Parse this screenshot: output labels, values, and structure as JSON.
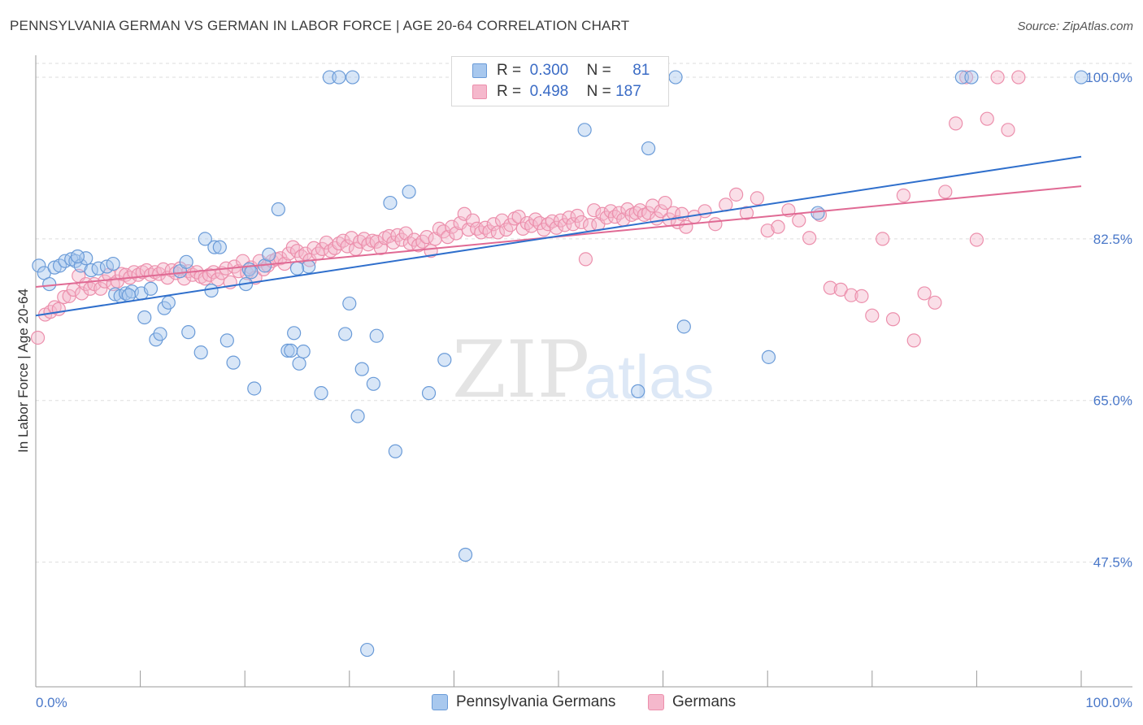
{
  "title": "PENNSYLVANIA GERMAN VS GERMAN IN LABOR FORCE | AGE 20-64 CORRELATION CHART",
  "source": "Source: ZipAtlas.com",
  "watermark": {
    "zip": "ZIP",
    "atlas": "atlas"
  },
  "legend": {
    "r_label": "R =",
    "n_label": "N =",
    "rows": [
      {
        "r": "0.300",
        "n": "81"
      },
      {
        "r": "0.498",
        "n": "187"
      }
    ]
  },
  "colors": {
    "blue_fill": "#a8c8ee",
    "blue_stroke": "#6a9bd8",
    "blue_line": "#2f6fcc",
    "pink_fill": "#f5b8cc",
    "pink_stroke": "#ec8fac",
    "pink_line": "#e06a94",
    "tick_text": "#4a78c9",
    "grid": "#dddddd"
  },
  "chart_data": {
    "type": "scatter",
    "title": "PENNSYLVANIA GERMAN VS GERMAN IN LABOR FORCE | AGE 20-64 CORRELATION CHART",
    "xlabel": "",
    "ylabel": "In Labor Force | Age 20-64",
    "xlim": [
      0,
      100
    ],
    "ylim": [
      34,
      101.5
    ],
    "x_ticks_labels": [
      "0.0%",
      "100.0%"
    ],
    "y_ticks": [
      47.5,
      65.0,
      82.5,
      100.0
    ],
    "y_tick_labels": [
      "47.5%",
      "65.0%",
      "82.5%",
      "100.0%"
    ],
    "grid": true,
    "legend_position": "top-center",
    "series": [
      {
        "name": "Pennsylvania Germans",
        "color": "#a8c8ee",
        "R": 0.3,
        "N": 81,
        "trend": [
          [
            0,
            74.2
          ],
          [
            100,
            91.4
          ]
        ],
        "points": [
          [
            0.3,
            79.6
          ],
          [
            0.8,
            78.8
          ],
          [
            1.3,
            77.6
          ],
          [
            1.8,
            79.4
          ],
          [
            2.3,
            79.6
          ],
          [
            2.8,
            80.1
          ],
          [
            3.4,
            80.3
          ],
          [
            3.8,
            80.1
          ],
          [
            4.3,
            79.6
          ],
          [
            4.8,
            80.4
          ],
          [
            5.3,
            79.1
          ],
          [
            6.0,
            79.3
          ],
          [
            6.8,
            79.5
          ],
          [
            7.4,
            79.8
          ],
          [
            7.6,
            76.5
          ],
          [
            8.1,
            76.3
          ],
          [
            8.6,
            76.6
          ],
          [
            9.2,
            76.8
          ],
          [
            10.1,
            76.6
          ],
          [
            10.4,
            74.0
          ],
          [
            11.0,
            77.1
          ],
          [
            11.5,
            71.6
          ],
          [
            11.9,
            72.2
          ],
          [
            12.3,
            75.0
          ],
          [
            12.7,
            75.6
          ],
          [
            13.8,
            79.0
          ],
          [
            14.4,
            80.0
          ],
          [
            14.6,
            72.4
          ],
          [
            15.8,
            70.2
          ],
          [
            16.2,
            82.5
          ],
          [
            16.8,
            76.9
          ],
          [
            17.1,
            81.6
          ],
          [
            17.6,
            81.6
          ],
          [
            18.3,
            71.5
          ],
          [
            18.9,
            69.1
          ],
          [
            20.1,
            77.6
          ],
          [
            20.4,
            79.2
          ],
          [
            20.6,
            78.9
          ],
          [
            20.9,
            66.3
          ],
          [
            21.9,
            79.6
          ],
          [
            22.3,
            80.8
          ],
          [
            23.2,
            85.7
          ],
          [
            24.1,
            70.4
          ],
          [
            24.4,
            70.4
          ],
          [
            24.7,
            72.3
          ],
          [
            25.2,
            69.0
          ],
          [
            25.6,
            70.3
          ],
          [
            26.1,
            79.5
          ],
          [
            27.3,
            65.8
          ],
          [
            28.1,
            100.0
          ],
          [
            29.0,
            100.0
          ],
          [
            29.6,
            72.2
          ],
          [
            30.0,
            75.5
          ],
          [
            30.3,
            100.0
          ],
          [
            30.8,
            63.3
          ],
          [
            31.2,
            68.4
          ],
          [
            31.7,
            38.0
          ],
          [
            32.3,
            66.8
          ],
          [
            32.6,
            72.0
          ],
          [
            33.9,
            86.4
          ],
          [
            34.4,
            59.5
          ],
          [
            35.7,
            87.6
          ],
          [
            37.6,
            65.8
          ],
          [
            39.1,
            69.4
          ],
          [
            41.1,
            48.3
          ],
          [
            41.6,
            100.0
          ],
          [
            43.2,
            100.0
          ],
          [
            50.1,
            100.0
          ],
          [
            52.5,
            94.3
          ],
          [
            57.6,
            66.0
          ],
          [
            58.6,
            92.3
          ],
          [
            61.2,
            100.0
          ],
          [
            62.0,
            73.0
          ],
          [
            70.1,
            69.7
          ],
          [
            74.8,
            85.3
          ],
          [
            88.6,
            100.0
          ],
          [
            89.5,
            100.0
          ],
          [
            100.0,
            100.0
          ],
          [
            4.0,
            80.6
          ],
          [
            8.9,
            76.4
          ],
          [
            25.0,
            79.3
          ]
        ]
      },
      {
        "name": "Germans",
        "color": "#f5b8cc",
        "R": 0.498,
        "N": 187,
        "trend": [
          [
            0,
            77.3
          ],
          [
            100,
            88.2
          ]
        ],
        "points": [
          [
            0.2,
            71.8
          ],
          [
            0.9,
            74.3
          ],
          [
            1.4,
            74.6
          ],
          [
            1.8,
            75.1
          ],
          [
            2.2,
            74.9
          ],
          [
            2.7,
            76.2
          ],
          [
            3.2,
            76.3
          ],
          [
            3.6,
            77.0
          ],
          [
            4.1,
            78.5
          ],
          [
            4.4,
            76.6
          ],
          [
            4.8,
            77.6
          ],
          [
            5.2,
            77.1
          ],
          [
            5.6,
            77.6
          ],
          [
            6.2,
            77.1
          ],
          [
            6.6,
            77.9
          ],
          [
            7.0,
            78.6
          ],
          [
            7.4,
            77.6
          ],
          [
            7.8,
            77.9
          ],
          [
            8.2,
            78.7
          ],
          [
            8.6,
            78.6
          ],
          [
            9.0,
            78.3
          ],
          [
            9.4,
            78.9
          ],
          [
            9.8,
            78.6
          ],
          [
            10.2,
            78.9
          ],
          [
            10.6,
            79.1
          ],
          [
            11.0,
            78.6
          ],
          [
            11.4,
            78.9
          ],
          [
            11.8,
            78.7
          ],
          [
            12.2,
            79.2
          ],
          [
            12.6,
            78.3
          ],
          [
            13.0,
            79.1
          ],
          [
            13.4,
            78.8
          ],
          [
            13.8,
            79.3
          ],
          [
            14.2,
            78.2
          ],
          [
            14.6,
            79.0
          ],
          [
            15.0,
            78.6
          ],
          [
            15.4,
            78.9
          ],
          [
            15.8,
            78.4
          ],
          [
            16.2,
            78.2
          ],
          [
            16.6,
            78.6
          ],
          [
            17.0,
            78.9
          ],
          [
            17.4,
            78.1
          ],
          [
            17.8,
            78.8
          ],
          [
            18.2,
            79.3
          ],
          [
            18.6,
            77.8
          ],
          [
            19.0,
            79.5
          ],
          [
            19.4,
            79.0
          ],
          [
            19.8,
            80.1
          ],
          [
            20.2,
            78.8
          ],
          [
            20.6,
            79.4
          ],
          [
            21.0,
            78.3
          ],
          [
            21.4,
            80.1
          ],
          [
            21.8,
            79.2
          ],
          [
            22.2,
            79.6
          ],
          [
            22.6,
            80.1
          ],
          [
            23.0,
            80.3
          ],
          [
            23.4,
            80.4
          ],
          [
            23.8,
            79.8
          ],
          [
            24.2,
            80.9
          ],
          [
            24.6,
            81.6
          ],
          [
            25.0,
            81.2
          ],
          [
            25.4,
            80.6
          ],
          [
            25.8,
            80.9
          ],
          [
            26.2,
            80.2
          ],
          [
            26.6,
            81.5
          ],
          [
            27.0,
            80.9
          ],
          [
            27.4,
            81.4
          ],
          [
            27.8,
            82.1
          ],
          [
            28.2,
            81.2
          ],
          [
            28.6,
            81.5
          ],
          [
            29.0,
            82.0
          ],
          [
            29.4,
            82.3
          ],
          [
            29.8,
            81.7
          ],
          [
            30.2,
            82.6
          ],
          [
            30.6,
            81.4
          ],
          [
            31.0,
            82.2
          ],
          [
            31.4,
            82.5
          ],
          [
            31.8,
            81.9
          ],
          [
            32.2,
            82.3
          ],
          [
            32.6,
            82.2
          ],
          [
            33.0,
            81.5
          ],
          [
            33.4,
            82.6
          ],
          [
            33.8,
            82.8
          ],
          [
            34.2,
            82.1
          ],
          [
            34.6,
            82.9
          ],
          [
            35.0,
            82.4
          ],
          [
            35.4,
            83.1
          ],
          [
            35.8,
            82.0
          ],
          [
            36.2,
            82.4
          ],
          [
            36.6,
            81.8
          ],
          [
            37.0,
            82.2
          ],
          [
            37.4,
            82.7
          ],
          [
            37.8,
            81.2
          ],
          [
            38.2,
            82.5
          ],
          [
            38.6,
            83.6
          ],
          [
            39.0,
            83.3
          ],
          [
            39.4,
            82.7
          ],
          [
            39.8,
            83.8
          ],
          [
            40.2,
            83.1
          ],
          [
            40.6,
            84.2
          ],
          [
            41.0,
            85.2
          ],
          [
            41.4,
            83.5
          ],
          [
            41.8,
            84.5
          ],
          [
            42.2,
            83.6
          ],
          [
            42.6,
            83.2
          ],
          [
            43.0,
            83.7
          ],
          [
            43.4,
            83.3
          ],
          [
            43.8,
            84.1
          ],
          [
            44.2,
            83.2
          ],
          [
            44.6,
            84.5
          ],
          [
            45.0,
            83.5
          ],
          [
            45.4,
            84.0
          ],
          [
            45.8,
            84.7
          ],
          [
            46.2,
            84.9
          ],
          [
            46.6,
            83.6
          ],
          [
            47.0,
            84.2
          ],
          [
            47.4,
            83.9
          ],
          [
            47.8,
            84.6
          ],
          [
            48.2,
            84.2
          ],
          [
            48.6,
            83.5
          ],
          [
            49.0,
            84.1
          ],
          [
            49.4,
            84.4
          ],
          [
            49.8,
            83.7
          ],
          [
            50.2,
            84.5
          ],
          [
            50.6,
            84.0
          ],
          [
            51.0,
            84.8
          ],
          [
            51.4,
            84.1
          ],
          [
            51.8,
            85.0
          ],
          [
            52.2,
            84.3
          ],
          [
            52.6,
            80.3
          ],
          [
            53.0,
            84.0
          ],
          [
            53.4,
            85.6
          ],
          [
            53.8,
            84.1
          ],
          [
            54.2,
            85.2
          ],
          [
            54.6,
            84.8
          ],
          [
            55.0,
            85.5
          ],
          [
            55.4,
            84.9
          ],
          [
            55.8,
            85.3
          ],
          [
            56.2,
            84.6
          ],
          [
            56.6,
            85.7
          ],
          [
            57.0,
            85.1
          ],
          [
            57.4,
            85.3
          ],
          [
            57.8,
            85.6
          ],
          [
            58.2,
            85.1
          ],
          [
            58.6,
            85.3
          ],
          [
            59.0,
            86.1
          ],
          [
            59.4,
            84.7
          ],
          [
            59.8,
            85.5
          ],
          [
            60.2,
            86.4
          ],
          [
            60.6,
            84.6
          ],
          [
            61.0,
            85.3
          ],
          [
            61.4,
            84.3
          ],
          [
            61.8,
            85.2
          ],
          [
            62.2,
            83.8
          ],
          [
            63.0,
            84.9
          ],
          [
            64.0,
            85.5
          ],
          [
            65.0,
            84.1
          ],
          [
            66.0,
            86.2
          ],
          [
            67.0,
            87.3
          ],
          [
            68.0,
            85.3
          ],
          [
            69.0,
            86.9
          ],
          [
            70.0,
            83.4
          ],
          [
            71.0,
            83.8
          ],
          [
            72.0,
            85.6
          ],
          [
            73.0,
            84.5
          ],
          [
            74.0,
            82.6
          ],
          [
            75.0,
            85.1
          ],
          [
            76.0,
            77.2
          ],
          [
            77.0,
            77.0
          ],
          [
            78.0,
            76.4
          ],
          [
            79.0,
            76.3
          ],
          [
            80.0,
            74.2
          ],
          [
            81.0,
            82.5
          ],
          [
            82.0,
            73.8
          ],
          [
            83.0,
            87.2
          ],
          [
            84.0,
            71.5
          ],
          [
            85.0,
            76.6
          ],
          [
            86.0,
            75.6
          ],
          [
            87.0,
            87.6
          ],
          [
            88.0,
            95.0
          ],
          [
            89.0,
            100.0
          ],
          [
            90.0,
            82.4
          ],
          [
            91.0,
            95.5
          ],
          [
            92.0,
            100.0
          ],
          [
            93.0,
            94.3
          ],
          [
            94.0,
            100.0
          ]
        ]
      }
    ]
  }
}
